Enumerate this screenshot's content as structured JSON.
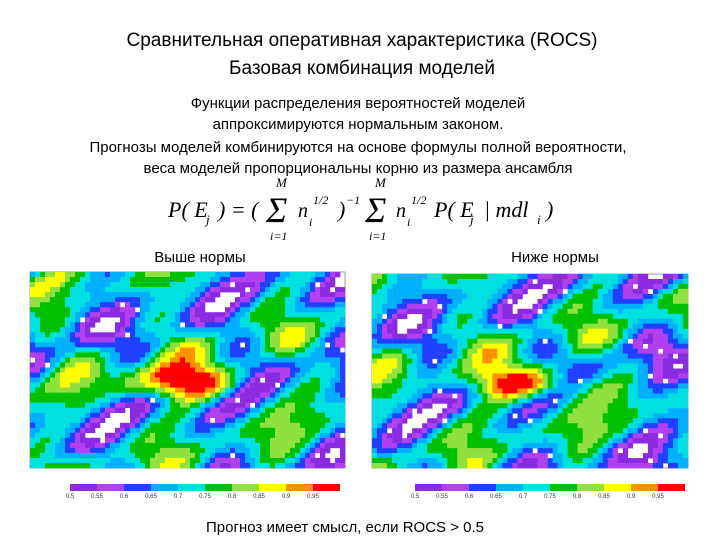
{
  "title": [
    "Сравнительная оперативная характеристика (ROCS)",
    "Базовая комбинация моделей"
  ],
  "text": [
    "Функции распределения вероятностей моделей",
    "аппроксимируются нормальным законом.",
    "Прогнозы моделей комбинируются на основе формулы полной вероятности,",
    "веса моделей пропорциональны корню из размера ансамбля"
  ],
  "formula_parts": [
    "P( E",
    "j",
    ") = (",
    "Σ",
    "M",
    "i=1",
    "n",
    "i",
    "1/2",
    ")",
    "−1",
    "Σ",
    "M",
    "i=1",
    "n",
    "i",
    "1/2",
    "P( E",
    "j",
    "| mdl",
    "i",
    ")"
  ],
  "maps": [
    {
      "label": "Выше нормы",
      "colorbar": {
        "ticks": [
          0.5,
          0.55,
          0.6,
          0.65,
          0.7,
          0.75,
          0.8,
          0.85,
          0.9,
          0.95
        ],
        "colors": [
          "#8a2be2",
          "#b040f0",
          "#2040ff",
          "#00b0ff",
          "#00e0e0",
          "#00c000",
          "#90e040",
          "#ffff00",
          "#ff9000",
          "#ff0000"
        ]
      }
    },
    {
      "label": "Ниже нормы",
      "colorbar": {
        "ticks": [
          0.5,
          0.55,
          0.6,
          0.65,
          0.7,
          0.75,
          0.8,
          0.85,
          0.9,
          0.95
        ],
        "colors": [
          "#8a2be2",
          "#b040f0",
          "#2040ff",
          "#00b0ff",
          "#00e0e0",
          "#00c000",
          "#90e040",
          "#ffff00",
          "#ff9000",
          "#ff0000"
        ]
      }
    }
  ],
  "note": "Прогноз имеет смысл, если  ROCS > 0.5"
}
